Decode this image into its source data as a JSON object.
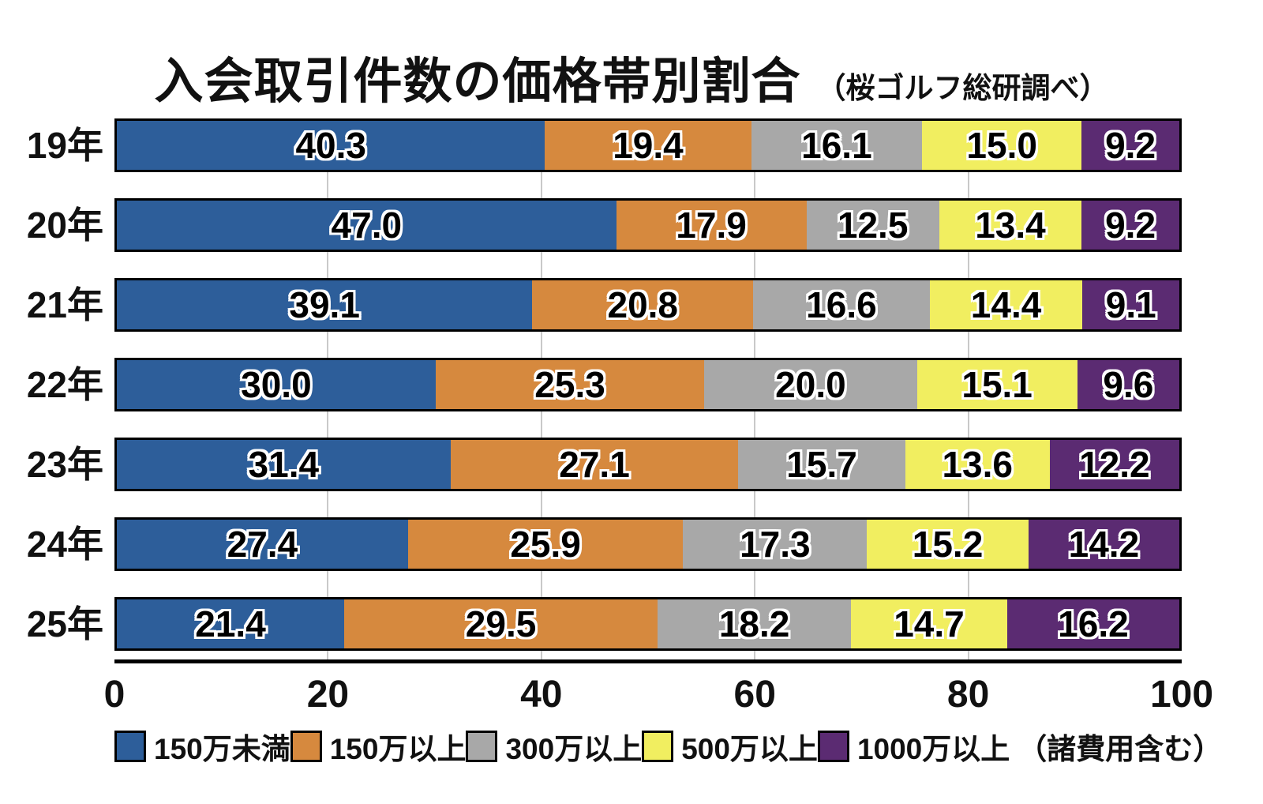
{
  "title": "入会取引件数の価格帯別割合",
  "subtitle": "（桜ゴルフ総研調べ）",
  "chart_data": {
    "type": "bar",
    "stacked": true,
    "orientation": "horizontal",
    "title": "入会取引件数の価格帯別割合",
    "subtitle": "（桜ゴルフ総研調べ）",
    "categories": [
      "19年",
      "20年",
      "21年",
      "22年",
      "23年",
      "24年",
      "25年"
    ],
    "series": [
      {
        "name": "150万未満",
        "color": "#2d5e9a",
        "values": [
          40.3,
          47.0,
          39.1,
          30.0,
          31.4,
          27.4,
          21.4
        ]
      },
      {
        "name": "150万以上",
        "color": "#d6893e",
        "values": [
          19.4,
          17.9,
          20.8,
          25.3,
          27.1,
          25.9,
          29.5
        ]
      },
      {
        "name": "300万以上",
        "color": "#a8a8a8",
        "values": [
          16.1,
          12.5,
          16.6,
          20.0,
          15.7,
          17.3,
          18.2
        ]
      },
      {
        "name": "500万以上",
        "color": "#f1ee60",
        "values": [
          15.0,
          13.4,
          14.4,
          15.1,
          13.6,
          15.2,
          14.7
        ]
      },
      {
        "name": "1000万以上",
        "color": "#5b2b72",
        "values": [
          9.2,
          9.2,
          9.1,
          9.6,
          12.2,
          14.2,
          16.2
        ]
      }
    ],
    "legend_suffix": "（諸費用含む）",
    "legend_position": "bottom",
    "xlim": [
      0,
      100
    ],
    "x_ticks": [
      0,
      20,
      40,
      60,
      80,
      100
    ],
    "grid": true,
    "gridline_color": "#c9c9c9",
    "value_label_style": "black-text-white-outline"
  }
}
